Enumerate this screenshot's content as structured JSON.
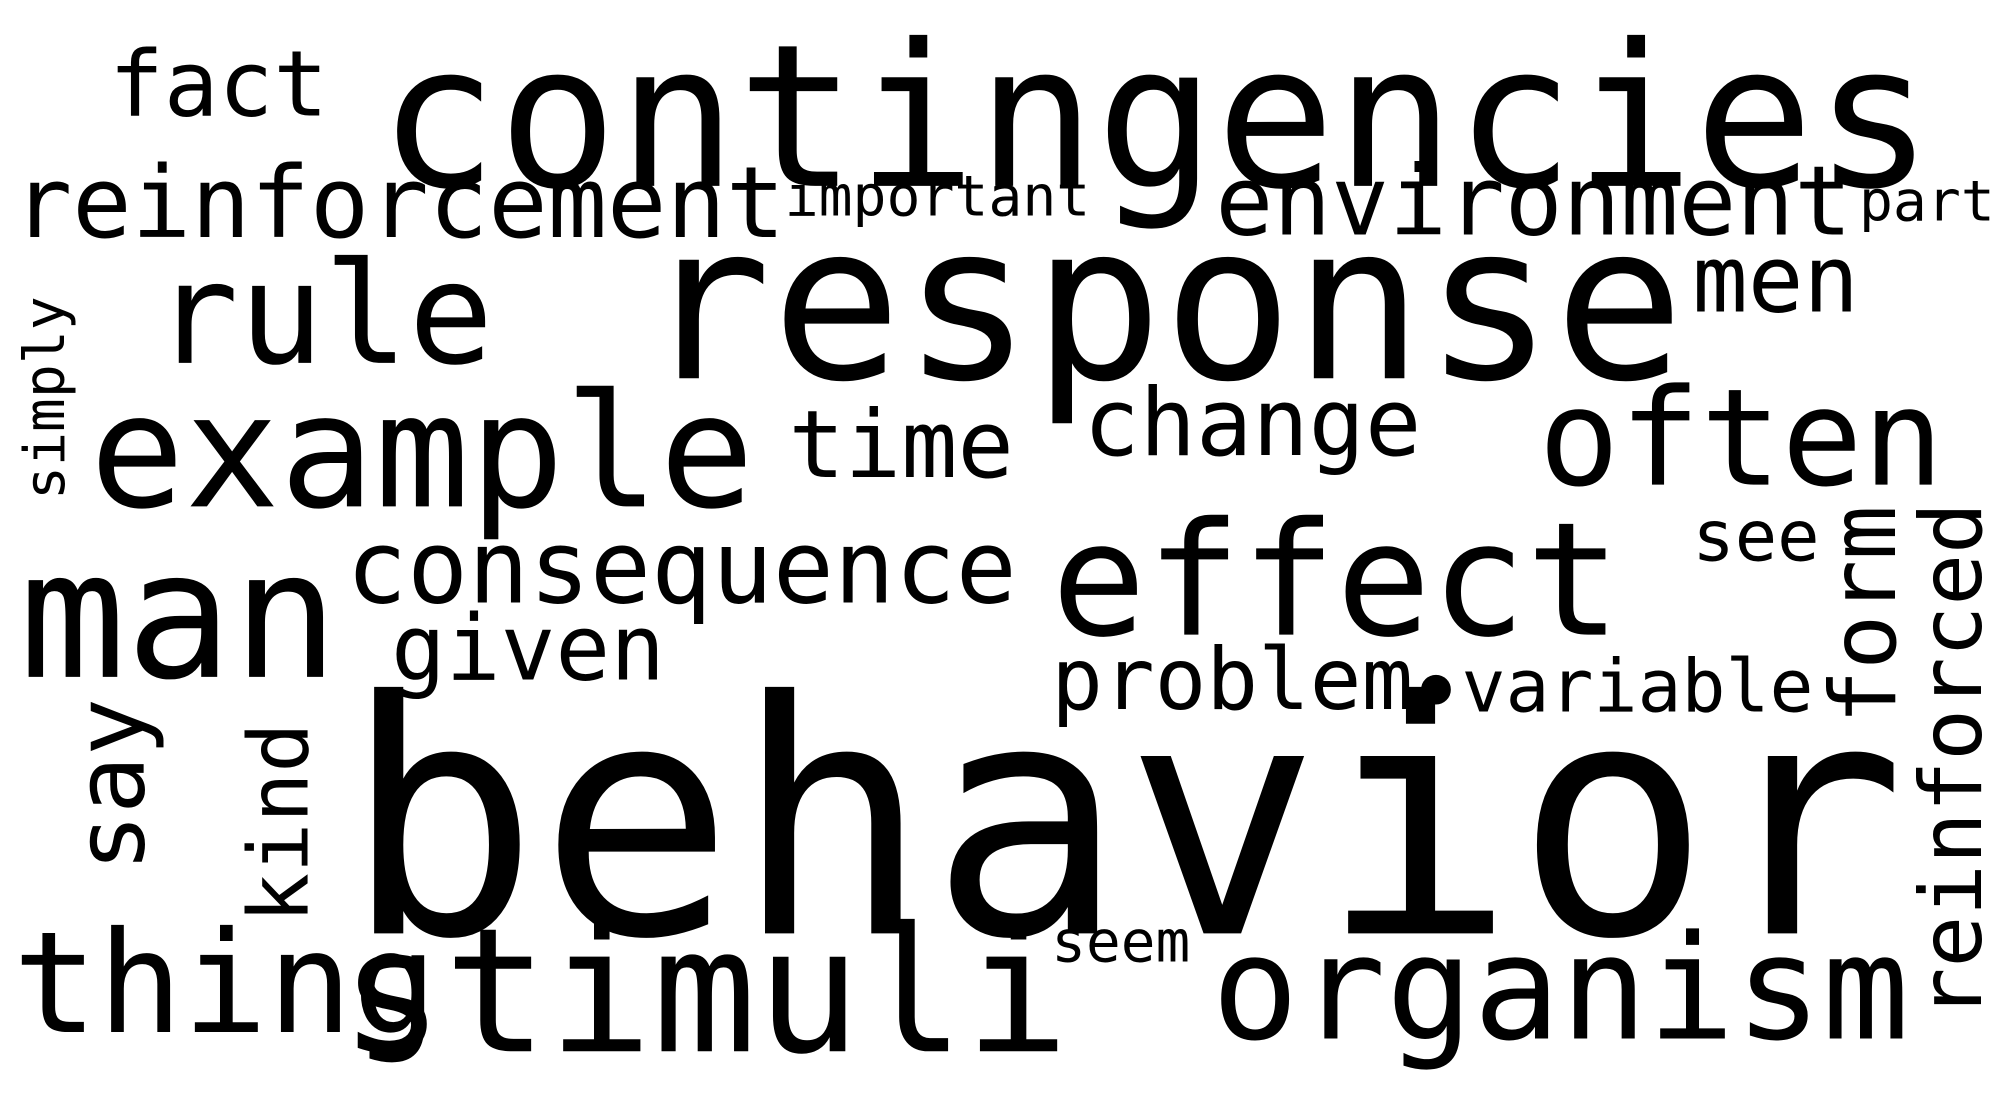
{
  "words": [
    "contingencies",
    "behavior",
    "response",
    "fact",
    "reinforcement",
    "important",
    "environment",
    "part",
    "rule",
    "men",
    "example",
    "time",
    "change",
    "often",
    "simply",
    "man",
    "consequence",
    "effect",
    "see",
    "form",
    "reinforced",
    "given",
    "problem",
    "•",
    "variable",
    "say",
    "kind",
    "thing",
    "stimuli",
    "seem",
    "organism"
  ]
}
